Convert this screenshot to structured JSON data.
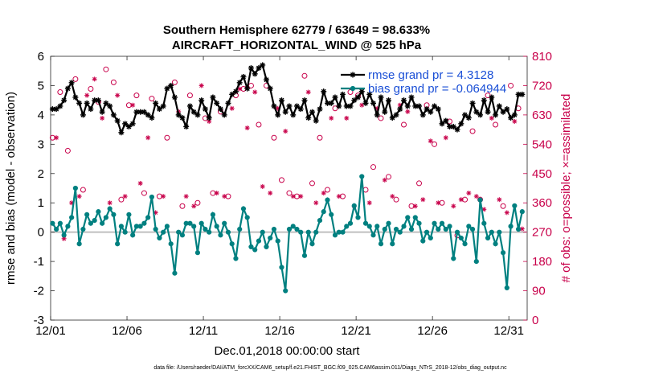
{
  "chart_data": {
    "type": "line",
    "title": "Southern Hemisphere 62779 / 63649 = 98.633%",
    "subtitle": "AIRCRAFT_HORIZONTAL_WIND @ 525 hPa",
    "xlabel": "Dec.01,2018 00:00:00 start",
    "ylabel": "rmse and bias (model - observation)",
    "ylabel_right": "# of obs: o=possible; ×=assimilated",
    "xlim": [
      0,
      31.2
    ],
    "ylim": [
      -3,
      6
    ],
    "ylim_right": [
      0,
      810
    ],
    "x_ticks": [
      0,
      5,
      10,
      15,
      20,
      25,
      30
    ],
    "x_tick_labels": [
      "12/01",
      "12/06",
      "12/11",
      "12/16",
      "12/21",
      "12/26",
      "12/31"
    ],
    "y_ticks": [
      -3,
      -2,
      -1,
      0,
      1,
      2,
      3,
      4,
      5,
      6
    ],
    "y_tick_labels": [
      "-3",
      "-2",
      "-1",
      "0",
      "1",
      "2",
      "3",
      "4",
      "5",
      "6"
    ],
    "y_right_ticks": [
      0,
      90,
      180,
      270,
      360,
      450,
      540,
      630,
      720,
      810
    ],
    "y_right_tick_labels": [
      "0",
      "90",
      "180",
      "270",
      "360",
      "450",
      "540",
      "630",
      "720",
      "810"
    ],
    "legend": [
      "rmse grand pr = 4.3128",
      "bias grand pr = -0.064944"
    ],
    "footer": "data file: /Users/raeder/DAI/ATM_forcXX/CAM6_setup/f.e21.FHIST_BGC.f09_025.CAM6assim.011/Diags_NTrS_2018-12/obs_diag_output.nc",
    "series": [
      {
        "name": "rmse",
        "color": "#000000",
        "x": [
          0.125,
          0.375,
          0.625,
          0.875,
          1.125,
          1.375,
          1.625,
          1.875,
          2.125,
          2.375,
          2.625,
          2.875,
          3.125,
          3.375,
          3.625,
          3.875,
          4.125,
          4.375,
          4.625,
          4.875,
          5.125,
          5.375,
          5.625,
          5.875,
          6.125,
          6.375,
          6.625,
          6.875,
          7.125,
          7.375,
          7.625,
          7.875,
          8.125,
          8.375,
          8.625,
          8.875,
          9.125,
          9.375,
          9.625,
          9.875,
          10.125,
          10.375,
          10.625,
          10.875,
          11.125,
          11.375,
          11.625,
          11.875,
          12.125,
          12.375,
          12.625,
          12.875,
          13.125,
          13.375,
          13.625,
          13.875,
          14.125,
          14.375,
          14.625,
          14.875,
          15.125,
          15.375,
          15.625,
          15.875,
          16.125,
          16.375,
          16.625,
          16.875,
          17.125,
          17.375,
          17.625,
          17.875,
          18.125,
          18.375,
          18.625,
          18.875,
          19.125,
          19.375,
          19.625,
          19.875,
          20.125,
          20.375,
          20.625,
          20.875,
          21.125,
          21.375,
          21.625,
          21.875,
          22.125,
          22.375,
          22.625,
          22.875,
          23.125,
          23.375,
          23.625,
          23.875,
          24.125,
          24.375,
          24.625,
          24.875,
          25.125,
          25.375,
          25.625,
          25.875,
          26.125,
          26.375,
          26.625,
          26.875,
          27.125,
          27.375,
          27.625,
          27.875,
          28.125,
          28.375,
          28.625,
          28.875,
          29.125,
          29.375,
          29.625,
          29.875,
          30.125,
          30.375,
          30.625,
          30.875
        ],
        "values": [
          4.2,
          4.2,
          4.3,
          4.5,
          4.9,
          5.1,
          4.6,
          4.4,
          4.0,
          4.4,
          4.2,
          4.5,
          4.5,
          4.1,
          4.4,
          4.3,
          4.0,
          3.8,
          3.4,
          3.7,
          3.6,
          3.7,
          4.1,
          4.1,
          4.1,
          4.0,
          3.9,
          4.4,
          4.2,
          4.3,
          4.9,
          5.0,
          4.6,
          4.0,
          3.9,
          3.6,
          4.3,
          4.1,
          4.0,
          4.5,
          4.2,
          3.9,
          4.6,
          4.4,
          4.2,
          4.0,
          4.4,
          4.7,
          4.8,
          5.1,
          5.3,
          4.9,
          5.6,
          5.4,
          5.6,
          5.7,
          5.2,
          4.9,
          4.3,
          4.0,
          4.5,
          4.1,
          4.3,
          4.0,
          4.3,
          4.2,
          4.5,
          3.9,
          4.1,
          3.8,
          4.2,
          4.8,
          4.4,
          4.4,
          4.6,
          4.3,
          4.7,
          4.3,
          4.3,
          4.5,
          4.6,
          4.8,
          4.4,
          4.7,
          4.4,
          4.0,
          4.6,
          4.1,
          4.5,
          3.9,
          4.0,
          4.2,
          4.5,
          4.3,
          4.6,
          4.3,
          4.3,
          4.0,
          4.2,
          4.1,
          4.3,
          4.2,
          3.7,
          3.8,
          3.6,
          3.6,
          3.5,
          3.7,
          4.0,
          3.9,
          4.4,
          4.1,
          4.0,
          4.5,
          4.1,
          4.6,
          4.0,
          4.3,
          4.1,
          4.2,
          3.9,
          4.0,
          4.7,
          4.7
        ]
      },
      {
        "name": "bias",
        "color": "#008080",
        "x": [
          0.125,
          0.375,
          0.625,
          0.875,
          1.125,
          1.375,
          1.625,
          1.875,
          2.125,
          2.375,
          2.625,
          2.875,
          3.125,
          3.375,
          3.625,
          3.875,
          4.125,
          4.375,
          4.625,
          4.875,
          5.125,
          5.375,
          5.625,
          5.875,
          6.125,
          6.375,
          6.625,
          6.875,
          7.125,
          7.375,
          7.625,
          7.875,
          8.125,
          8.375,
          8.625,
          8.875,
          9.125,
          9.375,
          9.625,
          9.875,
          10.125,
          10.375,
          10.625,
          10.875,
          11.125,
          11.375,
          11.625,
          11.875,
          12.125,
          12.375,
          12.625,
          12.875,
          13.125,
          13.375,
          13.625,
          13.875,
          14.125,
          14.375,
          14.625,
          14.875,
          15.125,
          15.375,
          15.625,
          15.875,
          16.125,
          16.375,
          16.625,
          16.875,
          17.125,
          17.375,
          17.625,
          17.875,
          18.125,
          18.375,
          18.625,
          18.875,
          19.125,
          19.375,
          19.625,
          19.875,
          20.125,
          20.375,
          20.625,
          20.875,
          21.125,
          21.375,
          21.625,
          21.875,
          22.125,
          22.375,
          22.625,
          22.875,
          23.125,
          23.375,
          23.625,
          23.875,
          24.125,
          24.375,
          24.625,
          24.875,
          25.125,
          25.375,
          25.625,
          25.875,
          26.125,
          26.375,
          26.625,
          26.875,
          27.125,
          27.375,
          27.625,
          27.875,
          28.125,
          28.375,
          28.625,
          28.875,
          29.125,
          29.375,
          29.625,
          29.875,
          30.125,
          30.375,
          30.625,
          30.875
        ],
        "values": [
          0.3,
          0.1,
          0.3,
          -0.1,
          0.2,
          0.5,
          1.5,
          -0.4,
          0.1,
          0.6,
          0.3,
          0.4,
          0.7,
          0.3,
          0.5,
          0.8,
          0.6,
          -0.4,
          0.2,
          0.0,
          0.6,
          -0.1,
          0.2,
          0.2,
          0.3,
          0.5,
          1.2,
          0.1,
          -0.2,
          0.0,
          0.2,
          -0.4,
          -1.4,
          0.0,
          -0.1,
          0.3,
          0.3,
          0.2,
          -0.7,
          0.3,
          0.1,
          0.0,
          0.6,
          0.2,
          -0.1,
          0.3,
          0.0,
          -0.4,
          -0.9,
          0.1,
          0.8,
          0.5,
          -0.5,
          -0.6,
          -0.3,
          0.0,
          -0.5,
          -0.2,
          0.1,
          -0.3,
          -1.2,
          -2.0,
          0.1,
          0.2,
          0.1,
          0.0,
          -0.8,
          0.0,
          -0.4,
          0.0,
          0.4,
          0.7,
          1.1,
          0.6,
          -0.1,
          0.0,
          0.0,
          0.2,
          0.3,
          0.9,
          0.5,
          1.9,
          0.3,
          0.2,
          -0.1,
          0.2,
          -0.4,
          0.1,
          0.3,
          -0.4,
          0.1,
          0.0,
          0.2,
          0.5,
          0.1,
          0.5,
          0.3,
          -0.3,
          0.0,
          -0.2,
          0.3,
          0.1,
          0.3,
          0.1,
          0.2,
          -0.9,
          0.0,
          -0.2,
          -0.4,
          0.2,
          0.1,
          -1.0,
          1.1,
          0.3,
          -0.2,
          0.0,
          -0.4,
          0.0,
          -0.7,
          -1.9,
          0.2,
          0.9,
          0.1,
          0.7
        ]
      },
      {
        "name": "obs possible",
        "color": "#c8004a",
        "marker": "circle",
        "axis": "right",
        "x": [
          0.125,
          0.625,
          1.125,
          1.625,
          2.125,
          2.625,
          3.125,
          3.625,
          4.125,
          4.625,
          5.125,
          5.625,
          6.125,
          6.625,
          7.125,
          7.625,
          8.125,
          8.625,
          9.125,
          9.625,
          10.125,
          10.625,
          11.125,
          11.625,
          12.125,
          12.625,
          13.125,
          13.625,
          14.125,
          14.625,
          15.125,
          15.625,
          16.125,
          16.625,
          17.125,
          17.625,
          18.125,
          18.625,
          19.125,
          19.625,
          20.125,
          20.625,
          21.125,
          21.625,
          22.125,
          22.625,
          23.125,
          23.625,
          24.125,
          24.625,
          25.125,
          25.625,
          26.125,
          26.625,
          27.125,
          27.625,
          28.125,
          28.625,
          29.125,
          29.625,
          30.125,
          30.625
        ],
        "values": [
          560,
          700,
          520,
          740,
          400,
          710,
          670,
          770,
          730,
          370,
          660,
          690,
          390,
          680,
          380,
          560,
          730,
          350,
          690,
          360,
          620,
          390,
          640,
          380,
          690,
          710,
          720,
          600,
          720,
          560,
          430,
          390,
          380,
          750,
          420,
          560,
          400,
          650,
          380,
          700,
          690,
          400,
          470,
          620,
          440,
          370,
          600,
          350,
          420,
          660,
          540,
          360,
          610,
          260,
          370,
          580,
          370,
          690,
          600,
          350,
          720,
          650
        ]
      },
      {
        "name": "obs assimilated",
        "color": "#c8004a",
        "marker": "asterisk",
        "axis": "right",
        "x": [
          0.375,
          0.875,
          1.375,
          1.875,
          2.375,
          2.875,
          3.375,
          3.875,
          4.375,
          4.875,
          5.375,
          5.875,
          6.375,
          6.875,
          7.375,
          7.875,
          8.375,
          8.875,
          9.375,
          9.875,
          10.375,
          10.875,
          11.375,
          11.875,
          12.375,
          12.875,
          13.375,
          13.875,
          14.375,
          14.875,
          15.375,
          15.875,
          16.375,
          16.875,
          17.375,
          17.875,
          18.375,
          18.875,
          19.375,
          19.875,
          20.375,
          20.875,
          21.375,
          21.875,
          22.375,
          22.875,
          23.375,
          23.875,
          24.375,
          24.875,
          25.375,
          25.875,
          26.375,
          26.875,
          27.375,
          27.875,
          28.375,
          28.875,
          29.375,
          29.875,
          30.375,
          30.875
        ],
        "values": [
          560,
          250,
          360,
          380,
          690,
          740,
          620,
          360,
          690,
          380,
          660,
          420,
          560,
          330,
          380,
          720,
          640,
          380,
          350,
          720,
          610,
          390,
          380,
          650,
          710,
          590,
          700,
          410,
          390,
          650,
          580,
          380,
          380,
          700,
          360,
          390,
          620,
          380,
          620,
          350,
          660,
          360,
          650,
          430,
          380,
          660,
          640,
          350,
          370,
          550,
          360,
          560,
          350,
          370,
          390,
          380,
          340,
          620,
          370,
          330,
          610,
          280
        ]
      }
    ]
  }
}
